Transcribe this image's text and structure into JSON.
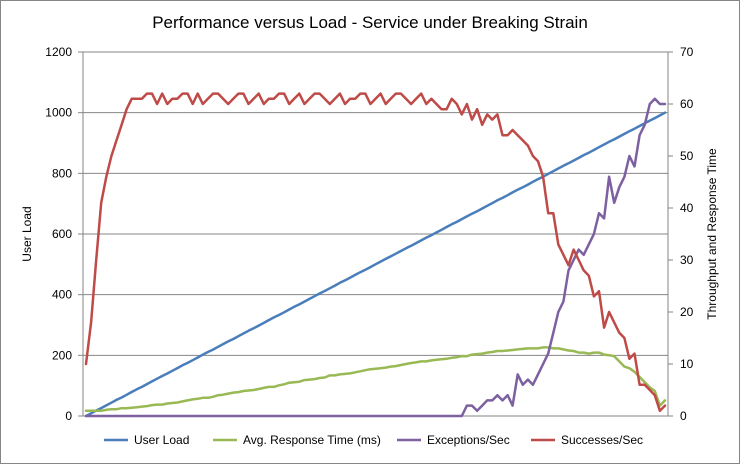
{
  "chart_data": {
    "type": "line",
    "title": "Performance versus Load - Service under Breaking Strain",
    "ylabel_left": "User Load",
    "ylabel_right": "Throughput and Response Time",
    "xlabel": "",
    "ylim_left": [
      0,
      1200
    ],
    "ylim_right": [
      0,
      70
    ],
    "yticks_left": [
      0,
      200,
      400,
      600,
      800,
      1000,
      1200
    ],
    "yticks_right": [
      0,
      10,
      20,
      30,
      40,
      50,
      60,
      70
    ],
    "x": [
      1,
      2,
      3,
      4,
      5,
      6,
      7,
      8,
      9,
      10,
      11,
      12,
      13,
      14,
      15,
      16,
      17,
      18,
      19,
      20,
      21,
      22,
      23,
      24,
      25,
      26,
      27,
      28,
      29,
      30,
      31,
      32,
      33,
      34,
      35,
      36,
      37,
      38,
      39,
      40,
      41,
      42,
      43,
      44,
      45,
      46,
      47,
      48,
      49,
      50,
      51,
      52,
      53,
      54,
      55,
      56,
      57,
      58,
      59,
      60,
      61,
      62,
      63,
      64,
      65,
      66,
      67,
      68,
      69,
      70,
      71,
      72,
      73,
      74,
      75,
      76,
      77,
      78,
      79,
      80,
      81,
      82,
      83,
      84,
      85,
      86,
      87,
      88,
      89,
      90,
      91,
      92,
      93,
      94,
      95,
      96,
      97,
      98,
      99,
      100,
      101,
      102,
      103,
      104,
      105,
      106,
      107,
      108,
      109,
      110,
      111,
      112,
      113,
      114,
      115
    ],
    "grid": "horizontal major gridlines",
    "legend_position": "bottom",
    "series": [
      {
        "name": "User Load",
        "axis": "left",
        "color": "#4a7ebb",
        "values": [
          0,
          9,
          18,
          26,
          35,
          44,
          53,
          61,
          70,
          79,
          88,
          96,
          105,
          114,
          123,
          132,
          140,
          149,
          158,
          167,
          175,
          184,
          193,
          202,
          211,
          219,
          228,
          237,
          246,
          254,
          263,
          272,
          281,
          289,
          298,
          307,
          316,
          325,
          333,
          342,
          351,
          360,
          368,
          377,
          386,
          395,
          404,
          412,
          421,
          430,
          439,
          447,
          456,
          465,
          474,
          482,
          491,
          500,
          509,
          518,
          526,
          535,
          544,
          553,
          561,
          570,
          579,
          588,
          596,
          605,
          614,
          623,
          632,
          640,
          649,
          658,
          667,
          675,
          684,
          693,
          702,
          711,
          719,
          728,
          737,
          746,
          754,
          763,
          772,
          781,
          789,
          798,
          807,
          816,
          825,
          833,
          842,
          851,
          860,
          868,
          877,
          886,
          895,
          904,
          912,
          921,
          930,
          939,
          947,
          956,
          965,
          974,
          982,
          991,
          1000
        ]
      },
      {
        "name": "Avg. Response Time (ms)",
        "axis": "right",
        "color": "#98b954",
        "values": [
          1,
          1,
          1,
          1,
          1.2,
          1.3,
          1.3,
          1.5,
          1.5,
          1.6,
          1.7,
          1.8,
          1.9,
          2.1,
          2.2,
          2.2,
          2.4,
          2.5,
          2.6,
          2.8,
          3,
          3.2,
          3.3,
          3.5,
          3.5,
          3.7,
          4,
          4.1,
          4.3,
          4.5,
          4.6,
          4.8,
          4.9,
          5,
          5.2,
          5.4,
          5.6,
          5.6,
          5.9,
          6.1,
          6.4,
          6.5,
          6.6,
          6.9,
          7,
          7.1,
          7.3,
          7.4,
          7.8,
          7.8,
          8,
          8.1,
          8.2,
          8.4,
          8.6,
          8.8,
          9,
          9.1,
          9.2,
          9.3,
          9.5,
          9.6,
          9.8,
          10,
          10.2,
          10.3,
          10.5,
          10.5,
          10.7,
          10.8,
          10.9,
          11,
          11.2,
          11.3,
          11.5,
          11.5,
          11.8,
          11.9,
          12,
          12.2,
          12.3,
          12.5,
          12.5,
          12.6,
          12.7,
          12.8,
          12.9,
          13,
          13,
          13,
          13.2,
          13.2,
          13,
          13,
          12.8,
          12.6,
          12.5,
          12.2,
          12.2,
          12,
          12.2,
          12.2,
          11.8,
          11.7,
          11.5,
          10.5,
          9.5,
          9.2,
          8.5,
          7.5,
          6.5,
          5.5,
          4.8,
          2,
          3
        ]
      },
      {
        "name": "Exceptions/Sec",
        "axis": "right",
        "color": "#7d60a0",
        "values": [
          0,
          0,
          0,
          0,
          0,
          0,
          0,
          0,
          0,
          0,
          0,
          0,
          0,
          0,
          0,
          0,
          0,
          0,
          0,
          0,
          0,
          0,
          0,
          0,
          0,
          0,
          0,
          0,
          0,
          0,
          0,
          0,
          0,
          0,
          0,
          0,
          0,
          0,
          0,
          0,
          0,
          0,
          0,
          0,
          0,
          0,
          0,
          0,
          0,
          0,
          0,
          0,
          0,
          0,
          0,
          0,
          0,
          0,
          0,
          0,
          0,
          0,
          0,
          0,
          0,
          0,
          0,
          0,
          0,
          0,
          0,
          0,
          0,
          0,
          0,
          2,
          2,
          1,
          2,
          3,
          3,
          4,
          3,
          4,
          2,
          8,
          6,
          7,
          6,
          8,
          10,
          12,
          16,
          20,
          22,
          28,
          30,
          32,
          31,
          33,
          35,
          39,
          38,
          46,
          41,
          44,
          46,
          50,
          48,
          54,
          56,
          60,
          61,
          60,
          60
        ]
      },
      {
        "name": "Successes/Sec",
        "axis": "right",
        "color": "#be4b48",
        "values": [
          10,
          18,
          30,
          41,
          46,
          50,
          53,
          56,
          59,
          61,
          61,
          61,
          62,
          62,
          60,
          62,
          60,
          61,
          61,
          62,
          62,
          60,
          62,
          60,
          61,
          62,
          62,
          61,
          60,
          61,
          62,
          62,
          60,
          61,
          62,
          60,
          61,
          61,
          62,
          62,
          60,
          61,
          62,
          60,
          61,
          62,
          62,
          61,
          60,
          61,
          62,
          60,
          61,
          61,
          62,
          62,
          60,
          61,
          62,
          60,
          61,
          62,
          62,
          61,
          60,
          61,
          62,
          60,
          61,
          60,
          59,
          59,
          61,
          60,
          58,
          60,
          57,
          59,
          56,
          58,
          57,
          58,
          54,
          54,
          55,
          54,
          53,
          52,
          50,
          49,
          46,
          39,
          39,
          33,
          31,
          29,
          32,
          30,
          28,
          27,
          23,
          24,
          17,
          20,
          18,
          16,
          15,
          11,
          12,
          6,
          6,
          5,
          4,
          1,
          2
        ]
      }
    ]
  }
}
